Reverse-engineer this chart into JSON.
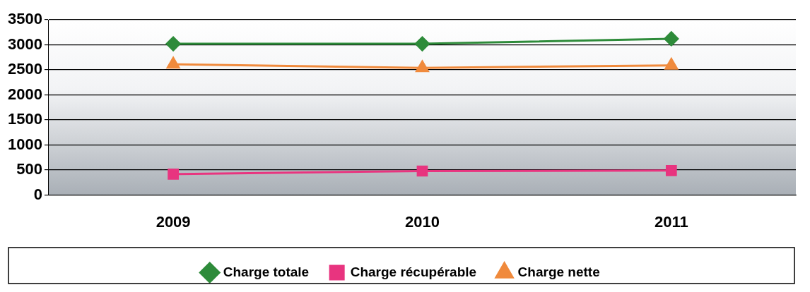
{
  "chart_data": {
    "type": "line",
    "categories": [
      "2009",
      "2010",
      "2011"
    ],
    "series": [
      {
        "name": "Charge totale",
        "color": "#2e8b3a",
        "marker": "diamond",
        "values": [
          3020,
          3020,
          3120
        ]
      },
      {
        "name": "Charge récupérable",
        "color": "#e8347f",
        "marker": "square",
        "values": [
          420,
          480,
          490
        ]
      },
      {
        "name": "Charge nette",
        "color": "#f08a3c",
        "marker": "triangle",
        "values": [
          2610,
          2540,
          2590
        ]
      }
    ],
    "ylim": [
      0,
      3500
    ],
    "yticks": [
      0,
      500,
      1000,
      1500,
      2000,
      2500,
      3000,
      3500
    ],
    "grid": "y",
    "legend": "bottom"
  }
}
